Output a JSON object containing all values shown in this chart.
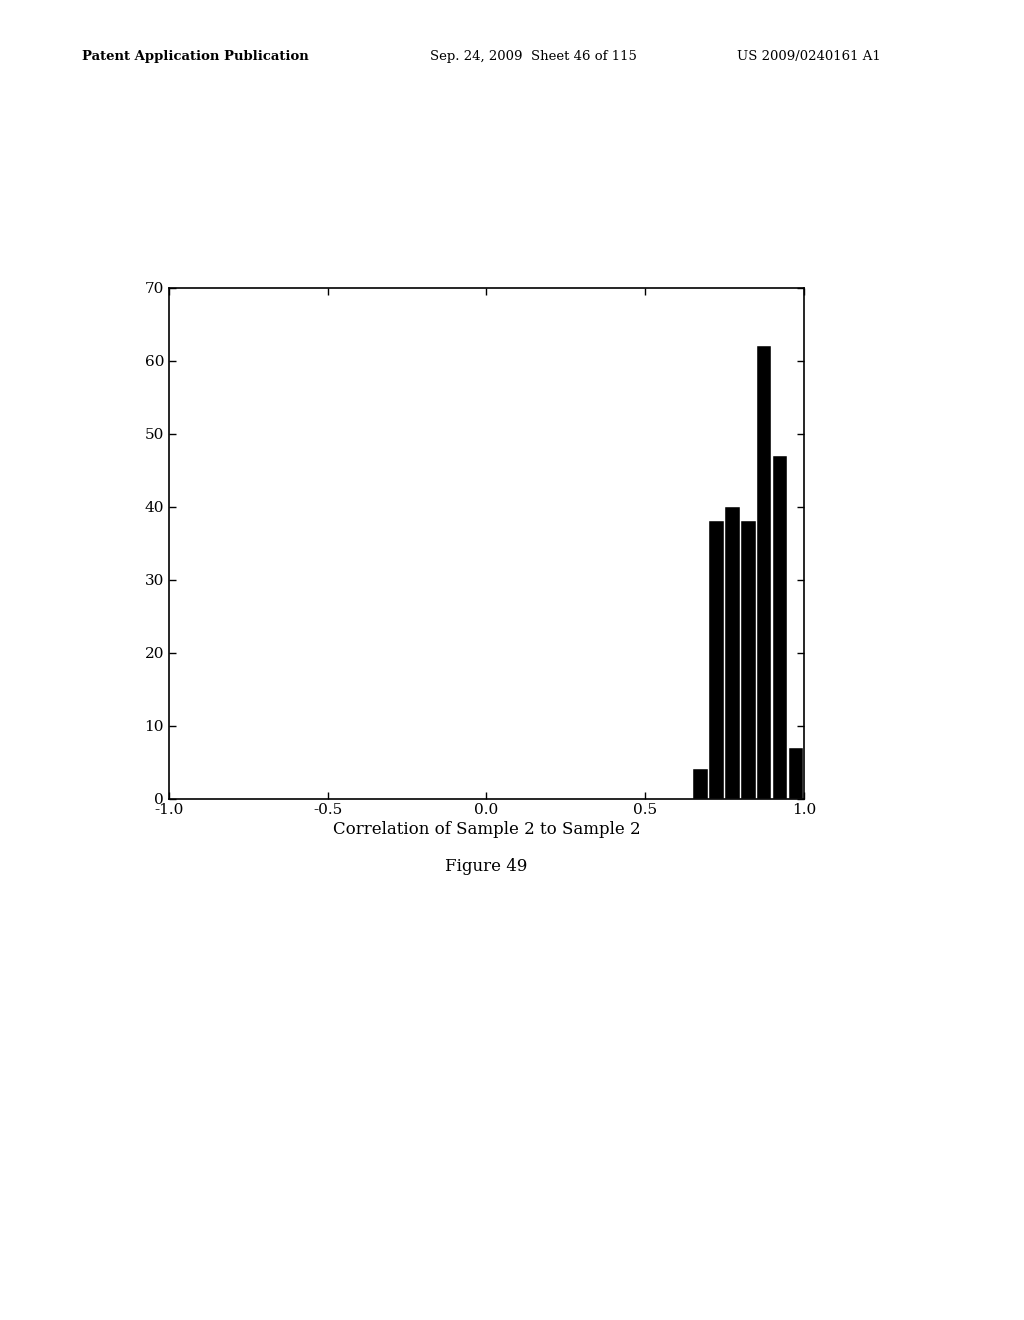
{
  "title": "",
  "xlabel": "Correlation of Sample 2 to Sample 2",
  "figure_caption": "Figure 49",
  "xlim": [
    -1.0,
    1.0
  ],
  "ylim": [
    0,
    70
  ],
  "yticks": [
    0,
    10,
    20,
    30,
    40,
    50,
    60,
    70
  ],
  "xticks": [
    -1.0,
    -0.5,
    0.0,
    0.5,
    1.0
  ],
  "bar_edges": [
    -1.0,
    -0.95,
    -0.9,
    -0.85,
    -0.8,
    -0.75,
    -0.7,
    -0.65,
    -0.6,
    -0.55,
    -0.5,
    -0.45,
    -0.4,
    -0.35,
    -0.3,
    -0.25,
    -0.2,
    -0.15,
    -0.1,
    -0.05,
    0.0,
    0.05,
    0.1,
    0.15,
    0.2,
    0.25,
    0.3,
    0.35,
    0.4,
    0.45,
    0.5,
    0.55,
    0.6,
    0.65,
    0.7,
    0.75,
    0.8,
    0.85,
    0.9,
    0.95,
    1.0
  ],
  "bar_heights": [
    0,
    0,
    0,
    0,
    0,
    0,
    0,
    0,
    0,
    0,
    0,
    0,
    0,
    0,
    0,
    0,
    0,
    0,
    0,
    0,
    0,
    0,
    0,
    0,
    0,
    0,
    0,
    0,
    0,
    0,
    0,
    0,
    0,
    4,
    38,
    40,
    38,
    62,
    47,
    7
  ],
  "bar_color": "#000000",
  "background_color": "#ffffff",
  "header_left": "Patent Application Publication",
  "header_mid": "Sep. 24, 2009  Sheet 46 of 115",
  "header_right": "US 2009/0240161 A1"
}
